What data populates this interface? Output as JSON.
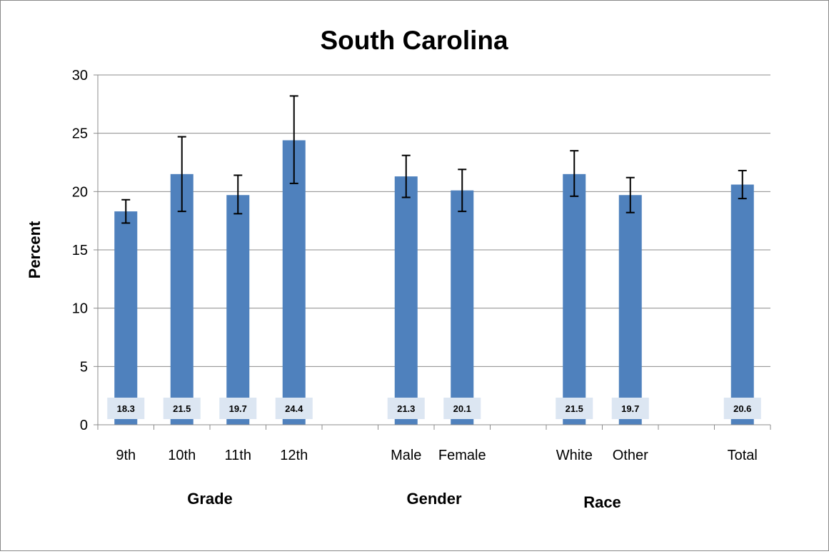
{
  "chart_data": {
    "type": "bar",
    "title": "South Carolina",
    "ylabel": "Percent",
    "xlabel": "",
    "ylim": [
      0,
      30
    ],
    "yticks": [
      0,
      5,
      10,
      15,
      20,
      25,
      30
    ],
    "grid": true,
    "colors": {
      "bar": "#4f81bd",
      "label_bg": "#dce6f2",
      "grid": "#8c8c8c",
      "error": "#000000"
    },
    "slots": [
      "9th",
      "10th",
      "11th",
      "12th",
      "",
      "Male",
      "Female",
      "",
      "White",
      "Other",
      "",
      "Total"
    ],
    "bars": [
      {
        "category": "9th",
        "slot": 0,
        "value": 18.3,
        "label": "18.3",
        "err_low": 17.3,
        "err_high": 19.3
      },
      {
        "category": "10th",
        "slot": 1,
        "value": 21.5,
        "label": "21.5",
        "err_low": 18.3,
        "err_high": 24.7
      },
      {
        "category": "11th",
        "slot": 2,
        "value": 19.7,
        "label": "19.7",
        "err_low": 18.1,
        "err_high": 21.4
      },
      {
        "category": "12th",
        "slot": 3,
        "value": 24.4,
        "label": "24.4",
        "err_low": 20.7,
        "err_high": 28.2
      },
      {
        "category": "Male",
        "slot": 5,
        "value": 21.3,
        "label": "21.3",
        "err_low": 19.5,
        "err_high": 23.1
      },
      {
        "category": "Female",
        "slot": 6,
        "value": 20.1,
        "label": "20.1",
        "err_low": 18.3,
        "err_high": 21.9
      },
      {
        "category": "White",
        "slot": 8,
        "value": 21.5,
        "label": "21.5",
        "err_low": 19.6,
        "err_high": 23.5
      },
      {
        "category": "Other",
        "slot": 9,
        "value": 19.7,
        "label": "19.7",
        "err_low": 18.2,
        "err_high": 21.2
      },
      {
        "category": "Total",
        "slot": 11,
        "value": 20.6,
        "label": "20.6",
        "err_low": 19.4,
        "err_high": 21.8
      }
    ],
    "groups": [
      {
        "label": "Grade",
        "center_slot": 1.5
      },
      {
        "label": "Gender",
        "center_slot": 5.5
      },
      {
        "label": "Race",
        "center_slot": 8.5
      }
    ]
  }
}
